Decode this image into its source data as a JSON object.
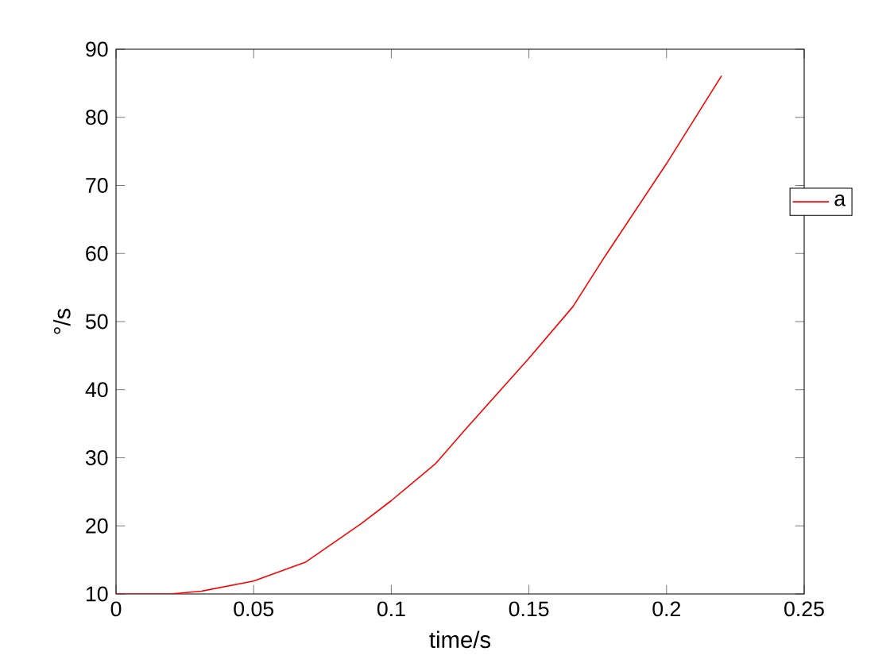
{
  "chart_data": {
    "type": "line",
    "xlabel": "time/s",
    "ylabel": "°/s",
    "xlim": [
      0,
      0.25
    ],
    "xticks": [
      0,
      0.05,
      0.1,
      0.15,
      0.2,
      0.25
    ],
    "ylim": [
      10,
      90
    ],
    "yticks": [
      10,
      20,
      30,
      40,
      50,
      60,
      70,
      80,
      90
    ],
    "legend": "right",
    "grid": false,
    "series": [
      {
        "name": "a",
        "color": "#ff0000",
        "x": [
          0,
          0.02,
          0.031,
          0.05,
          0.069,
          0.089,
          0.1,
          0.116,
          0.127,
          0.15,
          0.166,
          0.177,
          0.2,
          0.22
        ],
        "values": [
          10,
          10,
          10.4,
          11.9,
          14.7,
          20.3,
          23.7,
          29.1,
          34.2,
          44.6,
          52.2,
          59.2,
          73.2,
          86.1
        ]
      }
    ]
  }
}
